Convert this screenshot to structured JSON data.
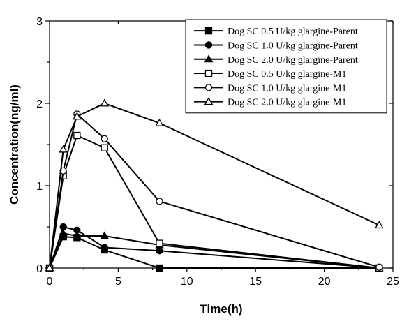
{
  "chart_data": {
    "type": "line",
    "title": "",
    "xlabel": "Time(h)",
    "ylabel": "Concentration(ng/ml)",
    "xlim": [
      0,
      25
    ],
    "ylim": [
      0,
      3
    ],
    "x_ticks": [
      0,
      5,
      10,
      15,
      20,
      25
    ],
    "y_ticks": [
      0,
      1,
      2,
      3
    ],
    "grid": false,
    "legend_position": "top-right",
    "series": [
      {
        "name": "Dog SC 0.5 U/kg glargine-Parent",
        "marker": "square-filled",
        "x": [
          0,
          1,
          2,
          4,
          8,
          24
        ],
        "y": [
          0,
          0.38,
          0.37,
          0.22,
          0,
          0
        ]
      },
      {
        "name": "Dog SC 1.0 U/kg glargine-Parent",
        "marker": "circle-filled",
        "x": [
          0,
          1,
          2,
          4,
          8,
          24
        ],
        "y": [
          0,
          0.5,
          0.46,
          0.25,
          0.21,
          0
        ]
      },
      {
        "name": "Dog SC 2.0 U/kg glargine-Parent",
        "marker": "triangle-filled",
        "x": [
          0,
          1,
          2,
          4,
          8,
          24
        ],
        "y": [
          0,
          0.42,
          0.39,
          0.39,
          0.28,
          0
        ]
      },
      {
        "name": "Dog SC 0.5 U/kg glargine-M1",
        "marker": "square-open",
        "x": [
          0,
          1,
          2,
          4,
          8,
          24
        ],
        "y": [
          0,
          1.12,
          1.61,
          1.46,
          0.3,
          0
        ]
      },
      {
        "name": "Dog SC 1.0 U/kg glargine-M1",
        "marker": "circle-open",
        "x": [
          0,
          1,
          2,
          4,
          8,
          24
        ],
        "y": [
          0,
          1.18,
          1.87,
          1.57,
          0.81,
          0.01
        ]
      },
      {
        "name": "Dog SC 2.0 U/kg glargine-M1",
        "marker": "triangle-open",
        "x": [
          0,
          1,
          2,
          4,
          8,
          24
        ],
        "y": [
          0,
          1.44,
          1.84,
          2.0,
          1.76,
          0.52
        ]
      }
    ]
  }
}
